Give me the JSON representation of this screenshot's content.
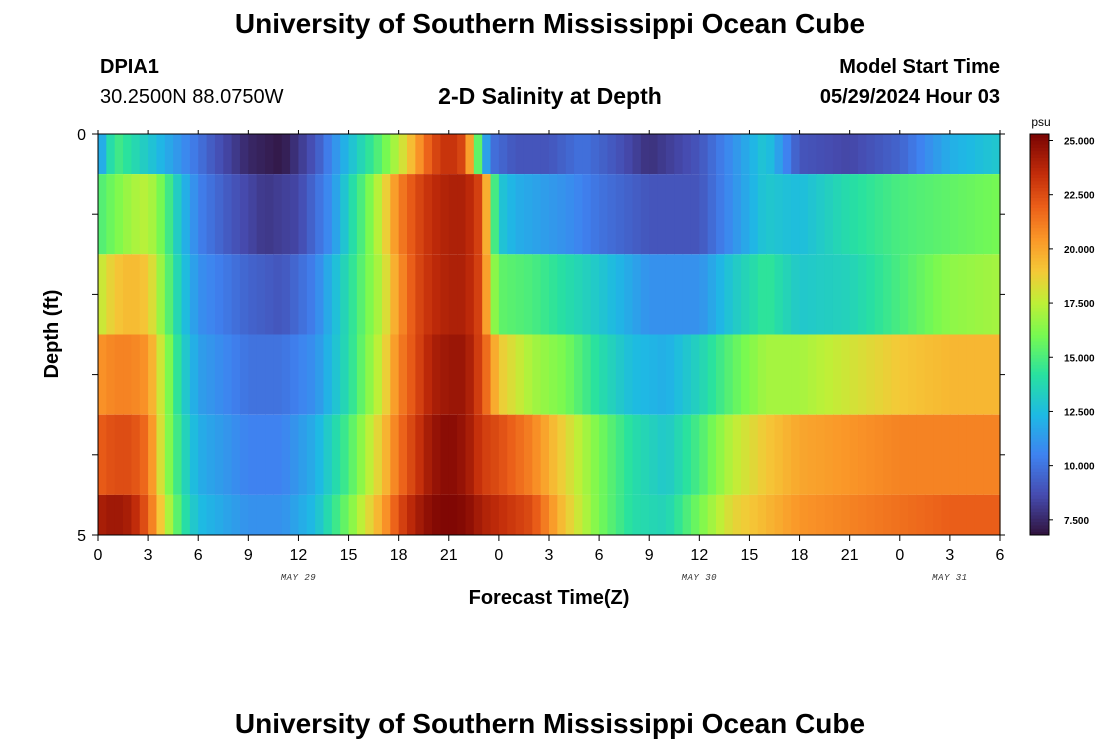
{
  "page": {
    "title": "University of Southern Mississippi Ocean Cube",
    "station": "DPIA1",
    "coords": "30.2500N  88.0750W",
    "subtitle": "2-D Salinity at Depth",
    "start_label": "Model Start Time",
    "start_value": "05/29/2024 Hour 03",
    "footer_title": "University of Southern Mississippi Ocean Cube"
  },
  "chart_data": {
    "type": "heatmap",
    "title": "2-D Salinity at Depth",
    "xlabel": "Forecast Time(Z)",
    "ylabel": "Depth (ft)",
    "x_tick_labels": [
      "0",
      "3",
      "6",
      "9",
      "12",
      "15",
      "18",
      "21",
      "0",
      "3",
      "6",
      "9",
      "12",
      "15",
      "18",
      "21",
      "0",
      "3",
      "6"
    ],
    "date_labels": [
      {
        "label": "MAY 29",
        "at_tick": 4
      },
      {
        "label": "MAY 30",
        "at_tick": 12
      },
      {
        "label": "MAY 31",
        "at_tick": 17
      }
    ],
    "y_tick_labels": [
      "0",
      "5"
    ],
    "ylim": [
      0,
      5
    ],
    "colorbar": {
      "unit": "psu",
      "min": 6.8,
      "max": 25.3,
      "ticks": [
        "25.000",
        "22.500",
        "20.000",
        "17.500",
        "15.000",
        "12.500",
        "10.000",
        "7.500"
      ],
      "tick_values": [
        25.0,
        22.5,
        20.0,
        17.5,
        15.0,
        12.5,
        10.0,
        7.5
      ]
    },
    "hours": [
      0,
      3,
      6,
      9,
      12,
      15,
      18,
      21,
      24,
      27,
      30,
      33,
      36,
      39,
      42,
      45,
      48,
      51,
      54
    ],
    "layers": [
      {
        "depth_range": "0-0.5",
        "values": [
          [
            0,
            11
          ],
          [
            0.4,
            12.5
          ],
          [
            1,
            15
          ],
          [
            2,
            14
          ],
          [
            3,
            13
          ],
          [
            4,
            12
          ],
          [
            5,
            11
          ],
          [
            7,
            9
          ],
          [
            9,
            7.5
          ],
          [
            11,
            7
          ],
          [
            13,
            9
          ],
          [
            15,
            12.5
          ],
          [
            17,
            15.5
          ],
          [
            18,
            17.5
          ],
          [
            19,
            20
          ],
          [
            20,
            22.5
          ],
          [
            21,
            23.5
          ],
          [
            22,
            22.5
          ],
          [
            22.6,
            17
          ],
          [
            23,
            13
          ],
          [
            23.5,
            10
          ],
          [
            25,
            9
          ],
          [
            27,
            9
          ],
          [
            29,
            10
          ],
          [
            31,
            9
          ],
          [
            33,
            7.8
          ],
          [
            36,
            9
          ],
          [
            38,
            11
          ],
          [
            40,
            13
          ],
          [
            42,
            9
          ],
          [
            45,
            8.5
          ],
          [
            48,
            9.5
          ],
          [
            51,
            12
          ],
          [
            54,
            13
          ]
        ]
      },
      {
        "depth_range": "0.5-1.5",
        "values": [
          [
            0,
            15
          ],
          [
            1,
            16
          ],
          [
            2,
            17
          ],
          [
            3,
            17.5
          ],
          [
            4,
            15.5
          ],
          [
            5,
            12.5
          ],
          [
            6,
            10.5
          ],
          [
            8,
            9
          ],
          [
            10,
            8
          ],
          [
            12,
            8.5
          ],
          [
            14,
            11
          ],
          [
            15,
            13.5
          ],
          [
            16,
            15.5
          ],
          [
            17,
            18
          ],
          [
            18,
            21
          ],
          [
            19,
            22.5
          ],
          [
            20,
            23.5
          ],
          [
            21,
            24
          ],
          [
            22,
            24
          ],
          [
            23,
            22.5
          ],
          [
            23.6,
            16
          ],
          [
            24,
            13
          ],
          [
            25,
            12
          ],
          [
            28,
            11
          ],
          [
            30,
            10
          ],
          [
            33,
            9
          ],
          [
            36,
            9
          ],
          [
            38,
            11
          ],
          [
            40,
            13
          ],
          [
            42,
            12.5
          ],
          [
            45,
            14
          ],
          [
            48,
            15
          ],
          [
            51,
            15.5
          ],
          [
            54,
            16
          ]
        ]
      },
      {
        "depth_range": "1.5-2.5",
        "values": [
          [
            0,
            17.5
          ],
          [
            1,
            19
          ],
          [
            2,
            19.5
          ],
          [
            3,
            19
          ],
          [
            4,
            16
          ],
          [
            5,
            13
          ],
          [
            6,
            11
          ],
          [
            9,
            9.5
          ],
          [
            11,
            9
          ],
          [
            13,
            10.5
          ],
          [
            15,
            14
          ],
          [
            17,
            17.5
          ],
          [
            18,
            20.5
          ],
          [
            19,
            22.5
          ],
          [
            20,
            23.5
          ],
          [
            21,
            24
          ],
          [
            22,
            24
          ],
          [
            23,
            22.5
          ],
          [
            23.6,
            17
          ],
          [
            24,
            15.5
          ],
          [
            26,
            15
          ],
          [
            28,
            14
          ],
          [
            30,
            13
          ],
          [
            33,
            11
          ],
          [
            36,
            11
          ],
          [
            38,
            13
          ],
          [
            40,
            14.5
          ],
          [
            42,
            13
          ],
          [
            45,
            13.5
          ],
          [
            48,
            15
          ],
          [
            51,
            16.5
          ],
          [
            54,
            17
          ]
        ]
      },
      {
        "depth_range": "2.5-3.5",
        "values": [
          [
            0,
            20.5
          ],
          [
            1,
            21
          ],
          [
            2,
            21
          ],
          [
            3,
            20.5
          ],
          [
            4,
            17
          ],
          [
            5,
            13.5
          ],
          [
            6,
            11.5
          ],
          [
            9,
            10
          ],
          [
            11,
            10
          ],
          [
            13,
            11
          ],
          [
            15,
            14
          ],
          [
            17,
            18
          ],
          [
            18,
            21
          ],
          [
            19,
            22.5
          ],
          [
            20,
            24
          ],
          [
            21,
            24.5
          ],
          [
            22,
            24.5
          ],
          [
            23,
            22.5
          ],
          [
            24,
            19
          ],
          [
            26,
            17
          ],
          [
            28,
            16
          ],
          [
            30,
            14
          ],
          [
            32,
            12.5
          ],
          [
            34,
            12
          ],
          [
            36,
            13.5
          ],
          [
            38,
            15.5
          ],
          [
            40,
            17
          ],
          [
            42,
            17
          ],
          [
            45,
            18
          ],
          [
            48,
            19
          ],
          [
            51,
            19.5
          ],
          [
            54,
            19.5
          ]
        ]
      },
      {
        "depth_range": "3.5-4.5",
        "values": [
          [
            0,
            22
          ],
          [
            1,
            22.5
          ],
          [
            2,
            22.5
          ],
          [
            3,
            21.5
          ],
          [
            4,
            17
          ],
          [
            5,
            14
          ],
          [
            6,
            12
          ],
          [
            9,
            10.5
          ],
          [
            11,
            10.5
          ],
          [
            13,
            12
          ],
          [
            15,
            15
          ],
          [
            17,
            19
          ],
          [
            18,
            21.5
          ],
          [
            19,
            23
          ],
          [
            20,
            24.5
          ],
          [
            21,
            25
          ],
          [
            22,
            24.5
          ],
          [
            23,
            23
          ],
          [
            24,
            22.5
          ],
          [
            26,
            21
          ],
          [
            28,
            18.5
          ],
          [
            30,
            16
          ],
          [
            32,
            14
          ],
          [
            34,
            13
          ],
          [
            36,
            15
          ],
          [
            38,
            17.5
          ],
          [
            40,
            19
          ],
          [
            42,
            20
          ],
          [
            45,
            20.5
          ],
          [
            48,
            21
          ],
          [
            51,
            21
          ],
          [
            54,
            21
          ]
        ]
      },
      {
        "depth_range": "4.5-5",
        "values": [
          [
            0,
            24
          ],
          [
            1,
            24.5
          ],
          [
            2,
            24
          ],
          [
            3,
            22
          ],
          [
            4,
            18
          ],
          [
            5,
            14.5
          ],
          [
            6,
            12.5
          ],
          [
            9,
            11
          ],
          [
            11,
            11
          ],
          [
            13,
            12.5
          ],
          [
            15,
            16
          ],
          [
            17,
            20
          ],
          [
            18,
            22.5
          ],
          [
            19,
            24
          ],
          [
            20,
            25
          ],
          [
            21,
            25.2
          ],
          [
            22,
            25
          ],
          [
            23,
            24
          ],
          [
            24,
            23.5
          ],
          [
            26,
            22.5
          ],
          [
            28,
            19
          ],
          [
            30,
            16
          ],
          [
            32,
            14
          ],
          [
            34,
            13.5
          ],
          [
            36,
            16
          ],
          [
            38,
            18.5
          ],
          [
            40,
            19.5
          ],
          [
            42,
            20.5
          ],
          [
            45,
            21
          ],
          [
            48,
            21.5
          ],
          [
            51,
            22
          ],
          [
            54,
            22
          ]
        ]
      }
    ]
  }
}
